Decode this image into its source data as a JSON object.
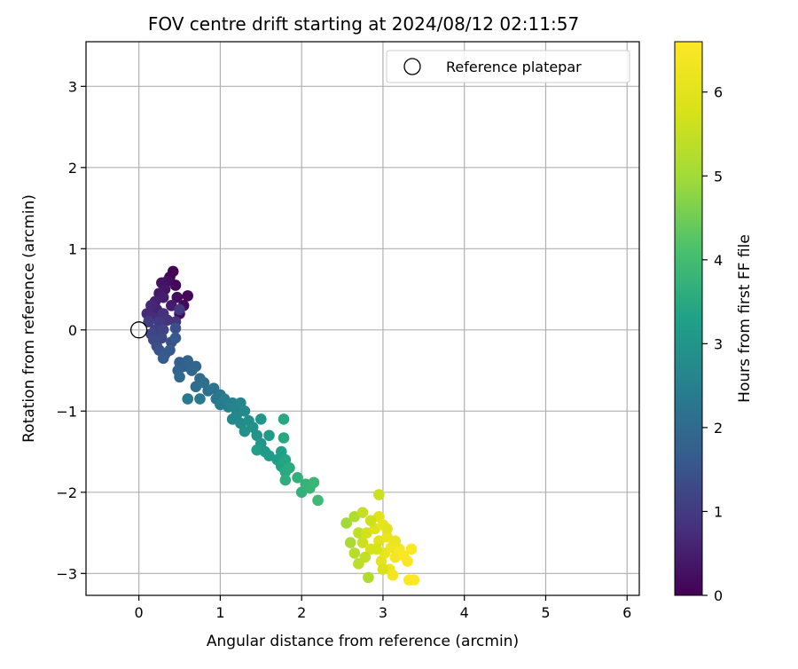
{
  "chart_data": {
    "type": "scatter",
    "title": "FOV centre drift starting at 2024/08/12 02:11:57",
    "xlabel": "Angular distance from reference (arcmin)",
    "ylabel": "Rotation from reference (arcmin)",
    "xlim": [
      -0.65,
      6.15
    ],
    "ylim": [
      -3.27,
      3.55
    ],
    "xticks": [
      0,
      1,
      2,
      3,
      4,
      5,
      6
    ],
    "yticks": [
      -3,
      -2,
      -1,
      0,
      1,
      2,
      3
    ],
    "xtick_labels": [
      "0",
      "1",
      "2",
      "3",
      "4",
      "5",
      "6"
    ],
    "ytick_labels": [
      "−3",
      "−2",
      "−1",
      "0",
      "1",
      "2",
      "3"
    ],
    "grid": true,
    "legend": {
      "position": "top-right",
      "label": "Reference platepar"
    },
    "reference_point": {
      "x": 0,
      "y": 0,
      "marker": "open-circle"
    },
    "colorbar": {
      "label": "Hours from first FF file",
      "colormap": "viridis",
      "range": [
        0,
        6.6
      ],
      "ticks": [
        0,
        1,
        2,
        3,
        4,
        5,
        6
      ],
      "tick_labels": [
        "0",
        "1",
        "2",
        "3",
        "4",
        "5",
        "6"
      ]
    },
    "points": [
      {
        "x": 0.42,
        "y": 0.72,
        "c": 0.02
      },
      {
        "x": 0.38,
        "y": 0.65,
        "c": 0.05
      },
      {
        "x": 0.45,
        "y": 0.55,
        "c": 0.08
      },
      {
        "x": 0.6,
        "y": 0.42,
        "c": 0.1
      },
      {
        "x": 0.55,
        "y": 0.3,
        "c": 0.12
      },
      {
        "x": 0.5,
        "y": 0.2,
        "c": 0.15
      },
      {
        "x": 0.47,
        "y": 0.4,
        "c": 0.18
      },
      {
        "x": 0.35,
        "y": 0.6,
        "c": 0.22
      },
      {
        "x": 0.28,
        "y": 0.58,
        "c": 0.3
      },
      {
        "x": 0.32,
        "y": 0.5,
        "c": 0.35
      },
      {
        "x": 0.25,
        "y": 0.45,
        "c": 0.4
      },
      {
        "x": 0.4,
        "y": 0.3,
        "c": 0.45
      },
      {
        "x": 0.3,
        "y": 0.4,
        "c": 0.5
      },
      {
        "x": 0.2,
        "y": 0.35,
        "c": 0.55
      },
      {
        "x": 0.22,
        "y": 0.25,
        "c": 0.6
      },
      {
        "x": 0.15,
        "y": 0.3,
        "c": 0.65
      },
      {
        "x": 0.1,
        "y": 0.2,
        "c": 0.7
      },
      {
        "x": 0.18,
        "y": 0.15,
        "c": 0.75
      },
      {
        "x": 0.3,
        "y": 0.2,
        "c": 0.8
      },
      {
        "x": 0.35,
        "y": 0.12,
        "c": 0.85
      },
      {
        "x": 0.45,
        "y": 0.1,
        "c": 0.9
      },
      {
        "x": 0.5,
        "y": 0.25,
        "c": 0.95
      },
      {
        "x": 0.25,
        "y": 0.1,
        "c": 1.0
      },
      {
        "x": 0.12,
        "y": 0.1,
        "c": 1.05
      },
      {
        "x": 0.2,
        "y": 0.0,
        "c": 1.1
      },
      {
        "x": 0.3,
        "y": 0.0,
        "c": 1.15
      },
      {
        "x": 0.15,
        "y": -0.05,
        "c": 1.2
      },
      {
        "x": 0.28,
        "y": -0.1,
        "c": 1.25
      },
      {
        "x": 0.18,
        "y": -0.12,
        "c": 1.3
      },
      {
        "x": 0.22,
        "y": -0.2,
        "c": 1.35
      },
      {
        "x": 0.45,
        "y": 0.02,
        "c": 1.4
      },
      {
        "x": 0.4,
        "y": -0.15,
        "c": 1.45
      },
      {
        "x": 0.25,
        "y": -0.25,
        "c": 1.5
      },
      {
        "x": 0.32,
        "y": -0.3,
        "c": 1.55
      },
      {
        "x": 0.38,
        "y": -0.25,
        "c": 1.6
      },
      {
        "x": 0.45,
        "y": -0.1,
        "c": 1.62
      },
      {
        "x": 0.3,
        "y": -0.35,
        "c": 1.65
      },
      {
        "x": 0.5,
        "y": -0.4,
        "c": 1.7
      },
      {
        "x": 0.55,
        "y": -0.45,
        "c": 1.75
      },
      {
        "x": 0.48,
        "y": -0.5,
        "c": 1.8
      },
      {
        "x": 0.6,
        "y": -0.38,
        "c": 1.85
      },
      {
        "x": 0.65,
        "y": -0.5,
        "c": 1.9
      },
      {
        "x": 0.7,
        "y": -0.45,
        "c": 1.92
      },
      {
        "x": 0.5,
        "y": -0.58,
        "c": 1.95
      },
      {
        "x": 0.75,
        "y": -0.6,
        "c": 2.0
      },
      {
        "x": 0.7,
        "y": -0.7,
        "c": 2.05
      },
      {
        "x": 0.8,
        "y": -0.65,
        "c": 2.1
      },
      {
        "x": 0.85,
        "y": -0.75,
        "c": 2.15
      },
      {
        "x": 0.92,
        "y": -0.72,
        "c": 2.2
      },
      {
        "x": 0.95,
        "y": -0.85,
        "c": 2.25
      },
      {
        "x": 1.0,
        "y": -0.8,
        "c": 2.3
      },
      {
        "x": 0.6,
        "y": -0.85,
        "c": 2.32
      },
      {
        "x": 0.75,
        "y": -0.85,
        "c": 2.35
      },
      {
        "x": 1.0,
        "y": -0.92,
        "c": 2.4
      },
      {
        "x": 1.05,
        "y": -0.85,
        "c": 2.45
      },
      {
        "x": 1.1,
        "y": -0.95,
        "c": 2.5
      },
      {
        "x": 1.15,
        "y": -0.9,
        "c": 2.55
      },
      {
        "x": 1.2,
        "y": -0.98,
        "c": 2.6
      },
      {
        "x": 1.25,
        "y": -0.9,
        "c": 2.62
      },
      {
        "x": 1.2,
        "y": -1.05,
        "c": 2.65
      },
      {
        "x": 1.15,
        "y": -1.1,
        "c": 2.7
      },
      {
        "x": 1.3,
        "y": -1.0,
        "c": 2.75
      },
      {
        "x": 1.25,
        "y": -1.15,
        "c": 2.8
      },
      {
        "x": 1.35,
        "y": -1.12,
        "c": 2.85
      },
      {
        "x": 1.3,
        "y": -1.25,
        "c": 2.9
      },
      {
        "x": 1.4,
        "y": -1.2,
        "c": 2.92
      },
      {
        "x": 1.45,
        "y": -1.3,
        "c": 2.95
      },
      {
        "x": 1.5,
        "y": -1.1,
        "c": 3.0
      },
      {
        "x": 1.5,
        "y": -1.4,
        "c": 3.05
      },
      {
        "x": 1.55,
        "y": -1.5,
        "c": 3.1
      },
      {
        "x": 1.6,
        "y": -1.3,
        "c": 3.15
      },
      {
        "x": 1.6,
        "y": -1.55,
        "c": 3.2
      },
      {
        "x": 1.45,
        "y": -1.48,
        "c": 3.22
      },
      {
        "x": 1.7,
        "y": -1.6,
        "c": 3.25
      },
      {
        "x": 1.75,
        "y": -1.5,
        "c": 3.3
      },
      {
        "x": 1.75,
        "y": -1.68,
        "c": 3.35
      },
      {
        "x": 1.8,
        "y": -1.6,
        "c": 3.4
      },
      {
        "x": 1.78,
        "y": -1.1,
        "c": 3.45
      },
      {
        "x": 1.78,
        "y": -1.33,
        "c": 3.48
      },
      {
        "x": 1.8,
        "y": -1.75,
        "c": 3.5
      },
      {
        "x": 1.85,
        "y": -1.7,
        "c": 3.55
      },
      {
        "x": 1.8,
        "y": -1.85,
        "c": 3.6
      },
      {
        "x": 1.95,
        "y": -1.82,
        "c": 3.65
      },
      {
        "x": 2.0,
        "y": -2.0,
        "c": 3.7
      },
      {
        "x": 2.05,
        "y": -1.9,
        "c": 3.75
      },
      {
        "x": 2.1,
        "y": -1.95,
        "c": 3.8
      },
      {
        "x": 2.15,
        "y": -1.88,
        "c": 3.85
      },
      {
        "x": 2.2,
        "y": -2.1,
        "c": 3.9
      },
      {
        "x": 2.55,
        "y": -2.38,
        "c": 5.0
      },
      {
        "x": 2.65,
        "y": -2.3,
        "c": 5.2
      },
      {
        "x": 2.6,
        "y": -2.62,
        "c": 5.1
      },
      {
        "x": 2.65,
        "y": -2.75,
        "c": 5.3
      },
      {
        "x": 2.7,
        "y": -2.5,
        "c": 5.4
      },
      {
        "x": 2.75,
        "y": -2.25,
        "c": 5.5
      },
      {
        "x": 2.7,
        "y": -2.88,
        "c": 5.35
      },
      {
        "x": 2.75,
        "y": -2.62,
        "c": 5.6
      },
      {
        "x": 2.8,
        "y": -2.5,
        "c": 5.7
      },
      {
        "x": 2.82,
        "y": -3.05,
        "c": 5.2
      },
      {
        "x": 2.85,
        "y": -2.7,
        "c": 5.8
      },
      {
        "x": 2.9,
        "y": -2.45,
        "c": 5.9
      },
      {
        "x": 2.95,
        "y": -2.03,
        "c": 5.6
      },
      {
        "x": 2.95,
        "y": -2.3,
        "c": 5.95
      },
      {
        "x": 2.95,
        "y": -2.6,
        "c": 6.0
      },
      {
        "x": 2.98,
        "y": -2.85,
        "c": 6.05
      },
      {
        "x": 3.0,
        "y": -2.4,
        "c": 6.1
      },
      {
        "x": 3.02,
        "y": -2.75,
        "c": 6.15
      },
      {
        "x": 3.05,
        "y": -2.55,
        "c": 6.2
      },
      {
        "x": 3.08,
        "y": -2.95,
        "c": 6.25
      },
      {
        "x": 3.1,
        "y": -2.68,
        "c": 6.3
      },
      {
        "x": 3.12,
        "y": -3.02,
        "c": 6.35
      },
      {
        "x": 3.15,
        "y": -2.8,
        "c": 6.4
      },
      {
        "x": 3.2,
        "y": -2.7,
        "c": 6.45
      },
      {
        "x": 3.25,
        "y": -2.78,
        "c": 6.5
      },
      {
        "x": 3.3,
        "y": -2.85,
        "c": 6.52
      },
      {
        "x": 3.35,
        "y": -2.7,
        "c": 6.55
      },
      {
        "x": 3.32,
        "y": -3.08,
        "c": 6.58
      },
      {
        "x": 3.38,
        "y": -3.08,
        "c": 6.6
      },
      {
        "x": 2.85,
        "y": -2.35,
        "c": 5.65
      },
      {
        "x": 2.92,
        "y": -2.7,
        "c": 5.75
      },
      {
        "x": 3.0,
        "y": -2.95,
        "c": 5.85
      },
      {
        "x": 3.05,
        "y": -2.45,
        "c": 6.0
      },
      {
        "x": 2.78,
        "y": -2.8,
        "c": 5.45
      },
      {
        "x": 3.15,
        "y": -2.6,
        "c": 6.2
      }
    ]
  }
}
